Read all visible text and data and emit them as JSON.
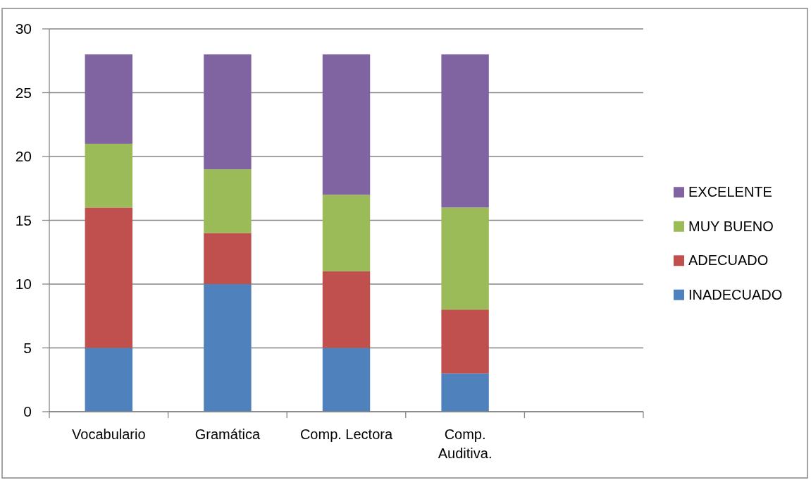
{
  "chart_data": {
    "type": "bar",
    "stacked": true,
    "categories": [
      "Vocabulario",
      "Gramática",
      "Comp. Lectora",
      "Comp. Auditiva.",
      null
    ],
    "series": [
      {
        "name": "INADECUADO",
        "color": "#4f81bd",
        "values": [
          5,
          10,
          5,
          3,
          null
        ]
      },
      {
        "name": "ADECUADO",
        "color": "#c0504d",
        "values": [
          11,
          4,
          6,
          5,
          null
        ]
      },
      {
        "name": "MUY BUENO",
        "color": "#9bbb59",
        "values": [
          5,
          5,
          6,
          8,
          null
        ]
      },
      {
        "name": "EXCELENTE",
        "color": "#8064a2",
        "values": [
          7,
          9,
          11,
          12,
          null
        ]
      }
    ],
    "ylim": [
      0,
      30
    ],
    "yticks": [
      0,
      5,
      10,
      15,
      20,
      25,
      30
    ],
    "grid": "y",
    "legend": "right"
  }
}
